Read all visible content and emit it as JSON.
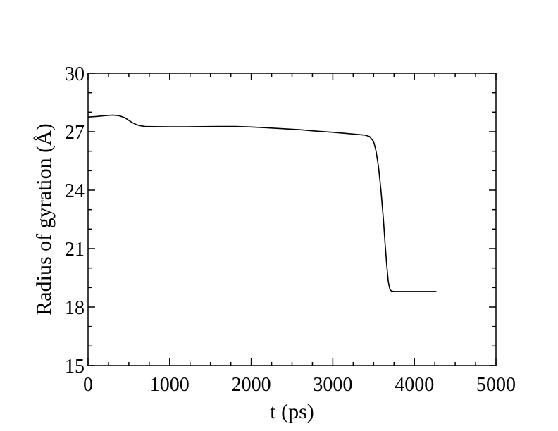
{
  "chart_data": {
    "type": "line",
    "title": "",
    "xlabel": "t (ps)",
    "ylabel": "Radius of gyration (Å)",
    "xlim": [
      0,
      5000
    ],
    "ylim": [
      15,
      30
    ],
    "x_ticks": [
      0,
      1000,
      2000,
      3000,
      4000,
      5000
    ],
    "y_ticks": [
      15,
      18,
      21,
      24,
      27,
      30
    ],
    "x_tick_labels": [
      "0",
      "1000",
      "2000",
      "3000",
      "4000",
      "5000"
    ],
    "y_tick_labels": [
      "15",
      "18",
      "21",
      "24",
      "27",
      "30"
    ],
    "x_minor_step": 250,
    "y_minor_step": 1,
    "grid": false,
    "legend": "none",
    "series": [
      {
        "color": "#000000",
        "x": [
          0,
          100,
          200,
          300,
          380,
          450,
          500,
          550,
          600,
          650,
          700,
          800,
          1000,
          1200,
          1400,
          1600,
          1800,
          2000,
          2200,
          2400,
          2600,
          2800,
          3000,
          3200,
          3400,
          3450,
          3500,
          3530,
          3560,
          3590,
          3620,
          3640,
          3660,
          3680,
          3700,
          3720,
          3750,
          3800,
          4000,
          4200,
          4270
        ],
        "y": [
          27.75,
          27.78,
          27.82,
          27.85,
          27.82,
          27.72,
          27.58,
          27.45,
          27.35,
          27.3,
          27.27,
          27.26,
          27.25,
          27.25,
          27.26,
          27.27,
          27.27,
          27.24,
          27.2,
          27.15,
          27.1,
          27.03,
          26.97,
          26.9,
          26.82,
          26.75,
          26.5,
          26.0,
          25.2,
          24.0,
          22.5,
          21.3,
          20.2,
          19.3,
          18.9,
          18.82,
          18.8,
          18.8,
          18.8,
          18.8,
          18.8
        ]
      }
    ]
  }
}
